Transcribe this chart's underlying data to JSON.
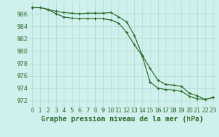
{
  "line1": [
    987.0,
    987.0,
    986.7,
    986.4,
    986.2,
    986.1,
    986.0,
    986.1,
    986.1,
    986.1,
    986.2,
    985.5,
    984.7,
    982.5,
    979.3,
    977.2,
    975.3,
    974.6,
    974.5,
    974.3,
    973.2,
    972.8,
    972.2,
    972.5
  ],
  "line2": [
    987.0,
    987.0,
    986.7,
    986.0,
    985.5,
    985.3,
    985.2,
    985.2,
    985.2,
    985.2,
    985.0,
    984.5,
    983.0,
    981.0,
    979.2,
    975.0,
    974.0,
    973.8,
    973.7,
    973.5,
    972.7,
    972.3,
    972.2,
    972.5
  ],
  "x": [
    0,
    1,
    2,
    3,
    4,
    5,
    6,
    7,
    8,
    9,
    10,
    11,
    12,
    13,
    14,
    15,
    16,
    17,
    18,
    19,
    20,
    21,
    22,
    23
  ],
  "ylim": [
    971.0,
    988.0
  ],
  "yticks": [
    972,
    974,
    976,
    978,
    980,
    982,
    984,
    986
  ],
  "line_color": "#2d6b2d",
  "bg_color": "#cff0ec",
  "grid_color": "#aad8d3",
  "xlabel": "Graphe pression niveau de la mer (hPa)",
  "xlabel_fontsize": 7.5,
  "tick_fontsize": 6.5
}
